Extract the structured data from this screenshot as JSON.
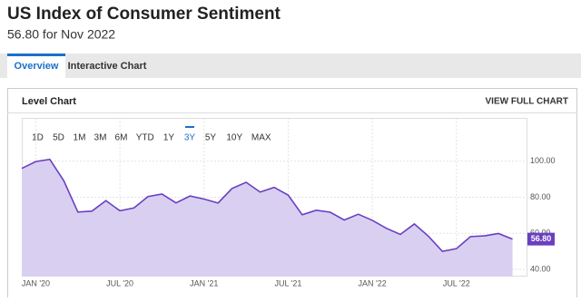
{
  "header": {
    "title": "US Index of Consumer Sentiment",
    "subtitle": "56.80 for Nov 2022"
  },
  "tabs": [
    "Overview",
    "Interactive Chart"
  ],
  "card": {
    "title": "Level Chart",
    "link": "VIEW FULL CHART"
  },
  "ranges": {
    "items": [
      "1D",
      "5D",
      "1M",
      "3M",
      "6M",
      "YTD",
      "1Y",
      "3Y",
      "5Y",
      "10Y",
      "MAX"
    ],
    "selected": "3Y"
  },
  "chart_data": {
    "type": "area",
    "color": "#6a3fc1",
    "fill": "#d9d0f1",
    "grid": true,
    "x": [
      "2019-12",
      "2020-01",
      "2020-02",
      "2020-03",
      "2020-04",
      "2020-05",
      "2020-06",
      "2020-07",
      "2020-08",
      "2020-09",
      "2020-10",
      "2020-11",
      "2020-12",
      "2021-01",
      "2021-02",
      "2021-03",
      "2021-04",
      "2021-05",
      "2021-06",
      "2021-07",
      "2021-08",
      "2021-09",
      "2021-10",
      "2021-11",
      "2021-12",
      "2022-01",
      "2022-02",
      "2022-03",
      "2022-04",
      "2022-05",
      "2022-06",
      "2022-07",
      "2022-08",
      "2022-09",
      "2022-10",
      "2022-11"
    ],
    "values": [
      96,
      99.8,
      101.0,
      89.1,
      71.8,
      72.3,
      78.1,
      72.5,
      74.1,
      80.4,
      81.8,
      76.9,
      80.7,
      79.0,
      76.8,
      84.9,
      88.3,
      82.9,
      85.5,
      81.2,
      70.3,
      72.8,
      71.7,
      67.4,
      70.6,
      67.2,
      62.8,
      59.4,
      65.2,
      58.4,
      50.0,
      51.5,
      58.2,
      58.6,
      59.9,
      56.8
    ],
    "value_labels": [
      null,
      null,
      null,
      null,
      null,
      null,
      null,
      null,
      null,
      null,
      null,
      null,
      null,
      null,
      null,
      null,
      null,
      null,
      null,
      null,
      null,
      null,
      null,
      null,
      null,
      null,
      null,
      null,
      null,
      null,
      null,
      null,
      null,
      null,
      null,
      "56.80"
    ],
    "xlim": [
      "2019-12",
      "2022-12"
    ],
    "ylim": [
      36,
      124
    ],
    "xticks": [
      {
        "value": "2020-01",
        "label": "JAN '20"
      },
      {
        "value": "2020-07",
        "label": "JUL '20"
      },
      {
        "value": "2021-01",
        "label": "JAN '21"
      },
      {
        "value": "2021-07",
        "label": "JUL '21"
      },
      {
        "value": "2022-01",
        "label": "JAN '22"
      },
      {
        "value": "2022-07",
        "label": "JUL '22"
      }
    ],
    "yticks": [
      {
        "value": 40,
        "label": "40.00"
      },
      {
        "value": 60,
        "label": "60.00"
      },
      {
        "value": 80,
        "label": "80.00"
      },
      {
        "value": 100,
        "label": "100.00"
      }
    ]
  }
}
